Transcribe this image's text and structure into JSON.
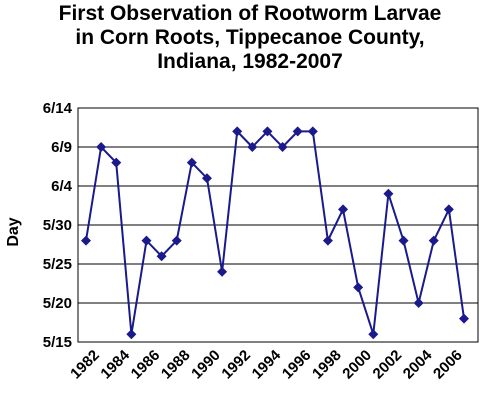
{
  "chart_data": {
    "type": "line",
    "title_lines": [
      "First Observation of Rootworm Larvae",
      "in Corn Roots, Tippecanoe County,",
      "Indiana, 1982-2007"
    ],
    "ylabel": "Day",
    "xlabel": "",
    "ytick_labels": [
      "5/15",
      "5/20",
      "5/25",
      "5/30",
      "6/4",
      "6/9",
      "6/14"
    ],
    "xtick_labels": [
      "1982",
      "1984",
      "1986",
      "1988",
      "1990",
      "1992",
      "1994",
      "1996",
      "1998",
      "2000",
      "2002",
      "2004",
      "2006"
    ],
    "x": [
      1982,
      1983,
      1984,
      1985,
      1986,
      1987,
      1988,
      1989,
      1990,
      1991,
      1992,
      1993,
      1994,
      1995,
      1996,
      1997,
      1998,
      1999,
      2000,
      2001,
      2002,
      2003,
      2004,
      2005,
      2006,
      2007
    ],
    "values": [
      "5/28",
      "6/9",
      "6/7",
      "5/16",
      "5/28",
      "5/26",
      "5/28",
      "6/7",
      "6/5",
      "5/24",
      "6/11",
      "6/9",
      "6/11",
      "6/9",
      "6/11",
      "6/11",
      "5/28",
      "6/1",
      "5/22",
      "5/16",
      "6/3",
      "5/28",
      "5/20",
      "5/28",
      "6/1",
      "5/18"
    ],
    "ylim": [
      "5/15",
      "6/14"
    ],
    "grid": true,
    "legend": "none",
    "line_color": "#1a1a8c",
    "marker": "diamond"
  }
}
